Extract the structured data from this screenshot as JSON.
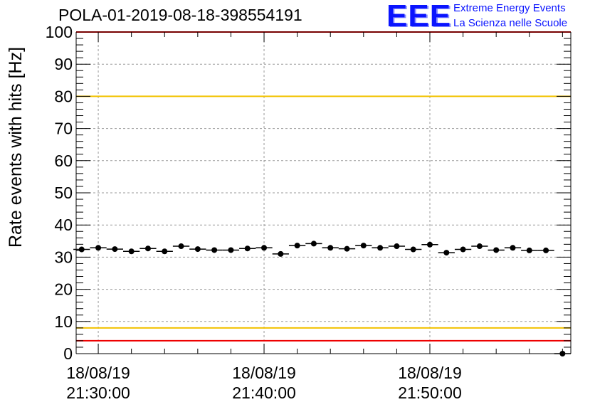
{
  "title": "POLA-01-2019-08-18-398554191",
  "logo": {
    "mark": "EEE",
    "line1": "Extreme Energy Events",
    "line2": "La Scienza nelle Scuole"
  },
  "colors": {
    "marker": "#000000",
    "upper_threshold": "#f2c200",
    "lower_threshold": "#f2c200",
    "limit_lines": "#ee0000",
    "grid": "#9a9a9a",
    "logo": "#0a14ff"
  },
  "chart_data": {
    "type": "scatter",
    "title": "POLA-01-2019-08-18-398554191",
    "ylabel": "Rate events with hits [Hz]",
    "xlabel": "",
    "ylim": [
      0,
      100
    ],
    "yticks": [
      "0",
      "10",
      "20",
      "30",
      "40",
      "50",
      "60",
      "70",
      "80",
      "90",
      "100"
    ],
    "xlim": [
      "21:28:40",
      "21:58:30"
    ],
    "xticks": [
      {
        "date": "18/08/19",
        "time": "21:30:00"
      },
      {
        "date": "18/08/19",
        "time": "21:40:00"
      },
      {
        "date": "18/08/19",
        "time": "21:50:00"
      }
    ],
    "grid": true,
    "bin_width_seconds": 60,
    "series": [
      {
        "x": [
          "21:29:00",
          "21:30:00",
          "21:31:00",
          "21:32:00",
          "21:33:00",
          "21:34:00",
          "21:35:00",
          "21:36:00",
          "21:37:00",
          "21:38:00",
          "21:39:00",
          "21:40:00",
          "21:41:00",
          "21:42:00",
          "21:43:00",
          "21:44:00",
          "21:45:00",
          "21:46:00",
          "21:47:00",
          "21:48:00",
          "21:49:00",
          "21:50:00",
          "21:51:00",
          "21:52:00",
          "21:53:00",
          "21:54:00",
          "21:55:00",
          "21:56:00",
          "21:57:00",
          "21:58:00"
        ],
        "values": [
          32.4,
          32.9,
          32.5,
          31.8,
          32.7,
          31.8,
          33.4,
          32.5,
          32.2,
          32.2,
          32.7,
          32.9,
          31.0,
          33.6,
          34.2,
          32.9,
          32.6,
          33.6,
          32.9,
          33.4,
          32.4,
          33.9,
          31.4,
          32.4,
          33.4,
          32.2,
          32.9,
          32.1,
          32.1,
          0
        ]
      }
    ],
    "reference_lines": [
      {
        "y": 100,
        "color": "red"
      },
      {
        "y": 80,
        "color": "yellow"
      },
      {
        "y": 8,
        "color": "yellow"
      },
      {
        "y": 4,
        "color": "red"
      }
    ]
  }
}
